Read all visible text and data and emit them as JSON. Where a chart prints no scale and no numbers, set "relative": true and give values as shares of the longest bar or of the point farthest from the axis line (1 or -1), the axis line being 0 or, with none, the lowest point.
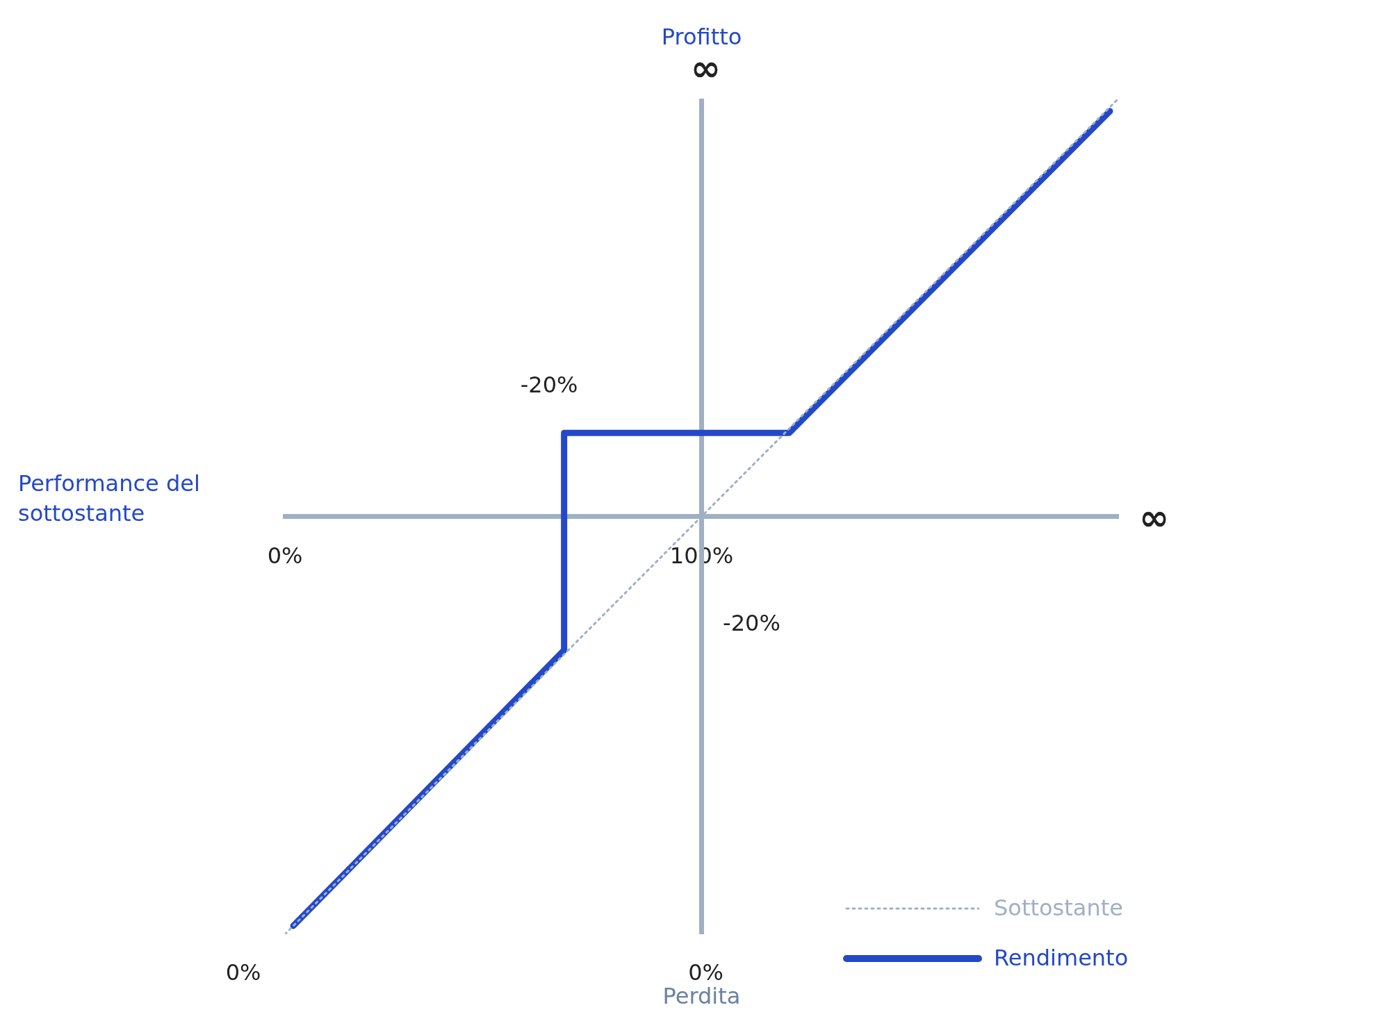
{
  "chart_data": {
    "type": "line",
    "relative": true,
    "xlabel": "Performance del sottostante",
    "ylabel": "Profitto",
    "xlim": [
      0,
      200
    ],
    "xticks": [
      {
        "value": 0,
        "label": "0%"
      },
      {
        "value": 100,
        "label": "100%"
      }
    ],
    "legend": "bottom right",
    "marker": "none",
    "ref_lines": [
      {
        "axis": "x",
        "value": 100,
        "color": "#9fb0c6"
      }
    ],
    "annotations": [
      "Perdita",
      "0%",
      "0%",
      "∞",
      "∞",
      "-20%",
      "-20%"
    ],
    "series": [
      {
        "name": "Sottostante",
        "color": "#9fb0c6",
        "line_style": "dotted",
        "x": [
          0,
          200
        ],
        "values": [
          -1,
          1
        ]
      },
      {
        "name": "Rendimento",
        "color": "#2448c8",
        "line_style": "solid",
        "x": [
          2,
          67,
          67,
          121,
          198
        ],
        "values": [
          -0.98,
          -0.32,
          0.2,
          0.2,
          0.97
        ]
      }
    ]
  }
}
